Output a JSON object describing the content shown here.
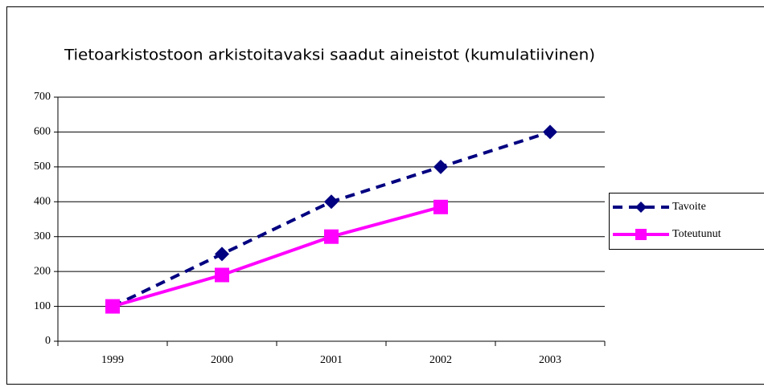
{
  "chart_data": {
    "type": "line",
    "title": "Tietoarkistostoon  arkistoitavaksi saadut aineistot (kumulatiivinen)",
    "categories": [
      "1999",
      "2000",
      "2001",
      "2002",
      "2003"
    ],
    "series": [
      {
        "name": "Tavoite",
        "color": "#000080",
        "values": [
          100,
          250,
          400,
          500,
          600
        ]
      },
      {
        "name": "Toteutunut",
        "color": "#ff00ff",
        "values": [
          100,
          190,
          300,
          385,
          null
        ]
      }
    ],
    "ylim": [
      0,
      700
    ],
    "yticks": [
      0,
      100,
      200,
      300,
      400,
      500,
      600,
      700
    ],
    "grid": true,
    "legend": "right"
  }
}
